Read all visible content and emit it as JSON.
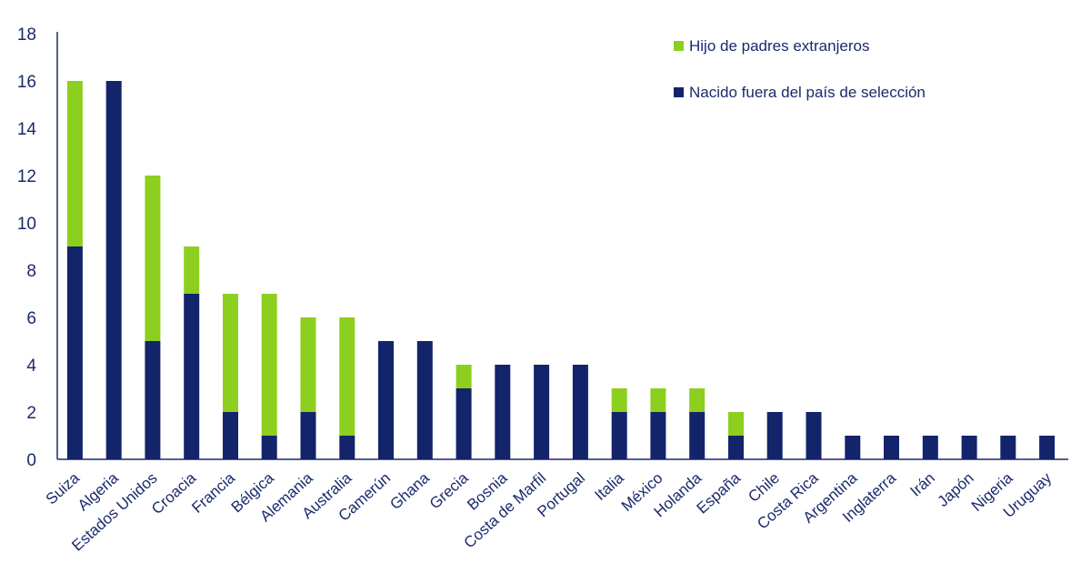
{
  "chart_data": {
    "type": "bar",
    "stacked": true,
    "categories": [
      "Suiza",
      "Algeria",
      "Estados Unidos",
      "Croacia",
      "Francia",
      "Bélgica",
      "Alemania",
      "Australia",
      "Camerún",
      "Ghana",
      "Grecia",
      "Bosnia",
      "Costa de Marfil",
      "Portugal",
      "Italia",
      "México",
      "Holanda",
      "España",
      "Chile",
      "Costa Rica",
      "Argentina",
      "Inglaterra",
      "Irán",
      "Japón",
      "Nigeria",
      "Uruguay"
    ],
    "series": [
      {
        "name": "Nacido fuera del país de selección",
        "color": "#13246b",
        "values": [
          9,
          16,
          5,
          7,
          2,
          1,
          2,
          1,
          5,
          5,
          3,
          4,
          4,
          4,
          2,
          2,
          2,
          1,
          2,
          2,
          1,
          1,
          1,
          1,
          1,
          1
        ]
      },
      {
        "name": "Hijo de padres extranjeros",
        "color": "#8ccf1e",
        "values": [
          7,
          0,
          7,
          2,
          5,
          6,
          4,
          5,
          0,
          0,
          1,
          0,
          0,
          0,
          1,
          1,
          1,
          1,
          0,
          0,
          0,
          0,
          0,
          0,
          0,
          0
        ]
      }
    ],
    "y_ticks": [
      "0",
      "2",
      "4",
      "6",
      "8",
      "10",
      "12",
      "14",
      "16",
      "18"
    ],
    "ylim": [
      0,
      18
    ],
    "legend": {
      "position": "top-right",
      "order": [
        "Hijo de padres extranjeros",
        "Nacido fuera del país de selección"
      ]
    },
    "grid": false,
    "colors": {
      "axis": "#1a2a6c",
      "text": "#1a2a6c"
    }
  }
}
